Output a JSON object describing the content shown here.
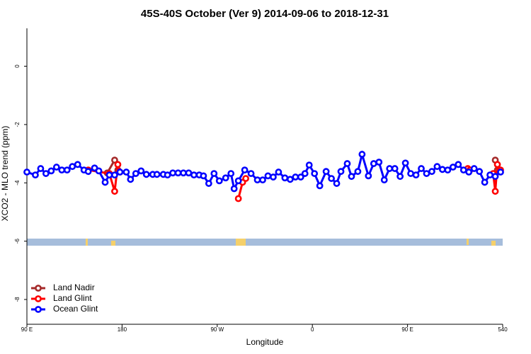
{
  "chart_data": {
    "type": "line",
    "title": "45S-40S October (Ver 9)   2014-09-06 to 2018-12-31",
    "x_label": "Longitude",
    "y_label": "XCO2 - MLO trend (ppm)",
    "xlim": [
      90,
      540
    ],
    "ylim": [
      -8.85,
      1.3
    ],
    "xticks": [
      {
        "value": 90,
        "label": "90 E"
      },
      180,
      {
        "value": 270,
        "label": "90 W"
      },
      {
        "value": 360,
        "label": "0"
      },
      {
        "value": 450,
        "label": "90 E"
      },
      540
    ],
    "yticks": [
      -8,
      -6,
      -4,
      -2,
      0
    ],
    "legend": "bottom-left",
    "series": [
      {
        "name": "Land Nadir",
        "color": "#a52a2a",
        "x": [
          166,
          173,
          176,
          null,
          533,
          535
        ],
        "values": [
          -3.66,
          -3.22,
          -3.56,
          null,
          -3.22,
          -3.56
        ]
      },
      {
        "name": "Land Glint",
        "color": "#ff0000",
        "x": [
          148,
          168,
          173,
          176,
          178,
          null,
          290,
          294,
          297,
          null,
          507,
          509,
          null,
          531,
          533,
          535,
          538
        ],
        "values": [
          -3.56,
          -3.68,
          -4.29,
          -3.37,
          -3.63,
          null,
          -4.54,
          -3.98,
          -3.85,
          null,
          -3.51,
          -3.56,
          null,
          -3.68,
          -4.29,
          -3.37,
          -3.56
        ]
      },
      {
        "name": "Ocean Glint",
        "color": "#0000ff",
        "x": [
          90,
          98,
          103,
          108,
          113,
          118,
          123,
          128,
          133,
          138,
          144,
          148,
          154,
          158,
          164,
          168,
          173,
          178,
          184,
          188,
          193,
          198,
          203,
          209,
          213,
          219,
          223,
          228,
          233,
          238,
          243,
          248,
          253,
          257,
          262,
          267,
          272,
          278,
          283,
          286,
          290,
          296,
          302,
          308,
          313,
          318,
          323,
          328,
          334,
          339,
          344,
          349,
          353,
          357,
          362,
          367,
          373,
          378,
          383,
          387,
          393,
          397,
          403,
          407,
          413,
          418,
          423,
          428,
          433,
          438,
          443,
          448,
          453,
          458,
          463,
          468,
          473,
          478,
          483,
          488,
          493,
          498,
          503,
          508,
          513,
          518,
          523,
          528,
          533,
          538
        ],
        "values": [
          -3.63,
          -3.73,
          -3.51,
          -3.68,
          -3.59,
          -3.46,
          -3.56,
          -3.56,
          -3.44,
          -3.37,
          -3.56,
          -3.61,
          -3.49,
          -3.59,
          -3.98,
          -3.73,
          -3.73,
          -3.63,
          -3.63,
          -3.88,
          -3.68,
          -3.59,
          -3.71,
          -3.71,
          -3.71,
          -3.71,
          -3.73,
          -3.66,
          -3.66,
          -3.66,
          -3.66,
          -3.73,
          -3.73,
          -3.76,
          -4.02,
          -3.68,
          -3.93,
          -3.83,
          -3.68,
          -4.2,
          -3.93,
          -3.56,
          -3.68,
          -3.9,
          -3.9,
          -3.76,
          -3.8,
          -3.63,
          -3.83,
          -3.88,
          -3.8,
          -3.8,
          -3.68,
          -3.39,
          -3.68,
          -4.1,
          -3.61,
          -3.85,
          -4.02,
          -3.61,
          -3.34,
          -3.78,
          -3.61,
          -3.02,
          -3.76,
          -3.34,
          -3.29,
          -3.9,
          -3.51,
          -3.51,
          -3.78,
          -3.32,
          -3.68,
          -3.73,
          -3.51,
          -3.68,
          -3.61,
          -3.44,
          -3.54,
          -3.56,
          -3.46,
          -3.37,
          -3.56,
          -3.63,
          -3.51,
          -3.61,
          -3.98,
          -3.73,
          -3.78,
          -3.63
        ]
      }
    ]
  }
}
